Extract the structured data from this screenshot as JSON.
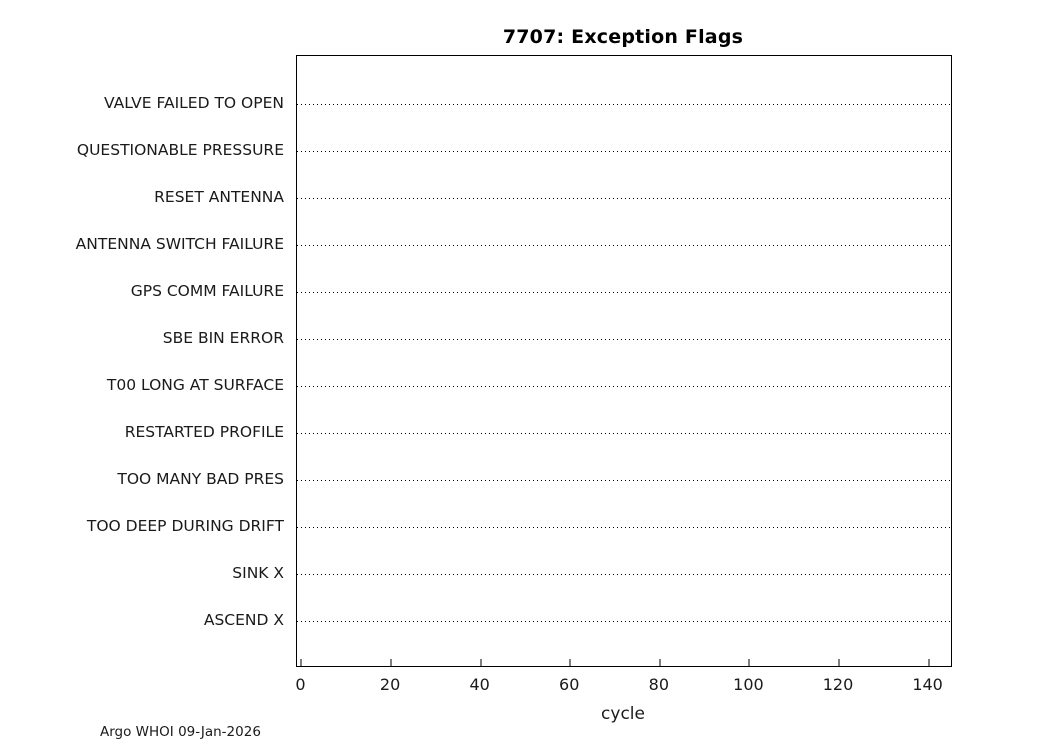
{
  "chart_data": {
    "type": "scatter",
    "title": "7707: Exception Flags",
    "xlabel": "cycle",
    "ylabel": "",
    "categories": [
      "VALVE FAILED TO OPEN",
      "QUESTIONABLE PRESSURE",
      "RESET ANTENNA",
      "ANTENNA SWITCH FAILURE",
      "GPS COMM FAILURE",
      "SBE BIN ERROR",
      "T00 LONG AT SURFACE",
      "RESTARTED PROFILE",
      "TOO MANY BAD PRES",
      "TOO DEEP DURING DRIFT",
      "SINK X",
      "ASCEND X"
    ],
    "x_ticks": [
      0,
      20,
      40,
      60,
      80,
      100,
      120,
      140
    ],
    "xlim": [
      -1,
      145
    ],
    "series": [],
    "grid": "dotted horizontal line at each category row",
    "legend": "none",
    "note": "empty plot - no exception flag events plotted"
  },
  "footer": {
    "credit": "Argo WHOI 09-Jan-2026"
  }
}
